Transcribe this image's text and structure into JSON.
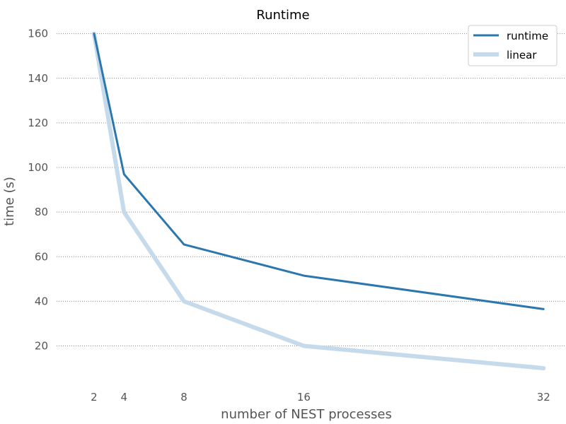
{
  "chart_data": {
    "type": "line",
    "title": "Runtime",
    "xlabel": "number of NEST processes",
    "ylabel": "time (s)",
    "x": [
      2,
      4,
      8,
      16,
      32
    ],
    "x_ticks": [
      "2",
      "4",
      "8",
      "16",
      "32"
    ],
    "y_ticks": [
      "20",
      "40",
      "60",
      "80",
      "100",
      "120",
      "140",
      "160"
    ],
    "xlim": [
      -0.5,
      33.5
    ],
    "ylim": [
      4,
      164
    ],
    "grid": "y",
    "legend_position": "top-right",
    "series": [
      {
        "name": "runtime",
        "values": [
          160,
          97,
          65.5,
          51.5,
          36.5
        ],
        "color": "#2b77ae"
      },
      {
        "name": "linear",
        "values": [
          160,
          80,
          40,
          20,
          10
        ],
        "color": "#c5daea"
      }
    ]
  }
}
